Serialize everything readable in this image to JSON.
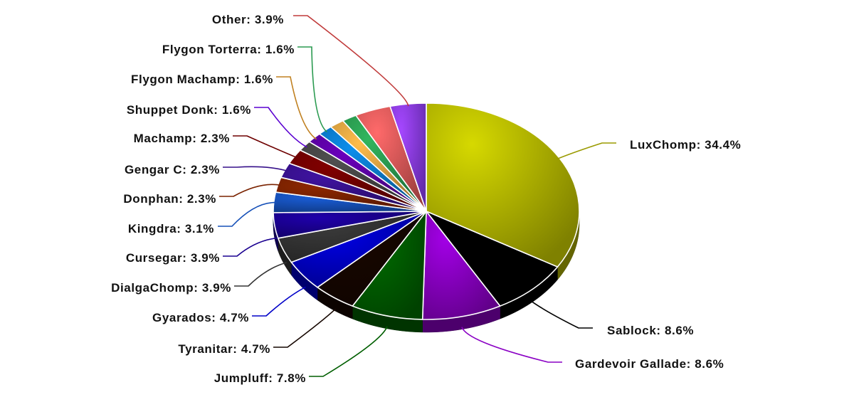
{
  "chart_data": {
    "type": "pie",
    "title": "",
    "slices": [
      {
        "name": "LuxChomp",
        "label": "LuxChomp: 34.4%",
        "value": 34.4,
        "color": "#b5b800"
      },
      {
        "name": "Sablock",
        "label": "Sablock: 8.6%",
        "value": 8.6,
        "color": "#000000"
      },
      {
        "name": "Gardevoir Gallade",
        "label": "Gardevoir Gallade: 8.6%",
        "value": 8.6,
        "color": "#8a00c4"
      },
      {
        "name": "Jumpluff",
        "label": "Jumpluff: 7.8%",
        "value": 7.8,
        "color": "#005e00"
      },
      {
        "name": "Tyranitar",
        "label": "Tyranitar: 4.7%",
        "value": 4.7,
        "color": "#150600"
      },
      {
        "name": "Gyarados",
        "label": "Gyarados: 4.7%",
        "value": 4.7,
        "color": "#0000c8"
      },
      {
        "name": "DialgaChomp",
        "label": "DialgaChomp: 3.9%",
        "value": 3.9,
        "color": "#333333"
      },
      {
        "name": "Cursegar",
        "label": "Cursegar: 3.9%",
        "value": 3.9,
        "color": "#1a0090"
      },
      {
        "name": "Kingdra",
        "label": "Kingdra: 3.1%",
        "value": 3.1,
        "color": "#1650b8"
      },
      {
        "name": "Donphan",
        "label": "Donphan: 2.3%",
        "value": 2.3,
        "color": "#7a2200"
      },
      {
        "name": "Gengar C",
        "label": "Gengar C: 2.3%",
        "value": 2.3,
        "color": "#36108a"
      },
      {
        "name": "Machamp",
        "label": "Machamp: 2.3%",
        "value": 2.3,
        "color": "#6e0000"
      },
      {
        "name": "Shuppet Donk",
        "label": "Shuppet Donk: 1.6%",
        "value": 1.6,
        "color": "#444444"
      },
      {
        "name": "Flygon Machamp",
        "label": "Flygon Machamp: 1.6%",
        "value": 1.6,
        "color": "#5a00a0"
      },
      {
        "name": "Flygon Torterra",
        "label": "Flygon Torterra: 1.6%",
        "value": 1.6,
        "color": "#0a78c8"
      },
      {
        "name": "Other",
        "label": "Other: 3.9%",
        "value": 3.9,
        "color": "#8c3cf0"
      }
    ],
    "extra_slices": [
      {
        "value": 1.6,
        "color": "#d8a040"
      },
      {
        "value": 1.6,
        "color": "#2a9a50"
      },
      {
        "value": 3.9,
        "color": "#e05a5a"
      }
    ],
    "legend": "none",
    "style": "3d-tilted"
  }
}
